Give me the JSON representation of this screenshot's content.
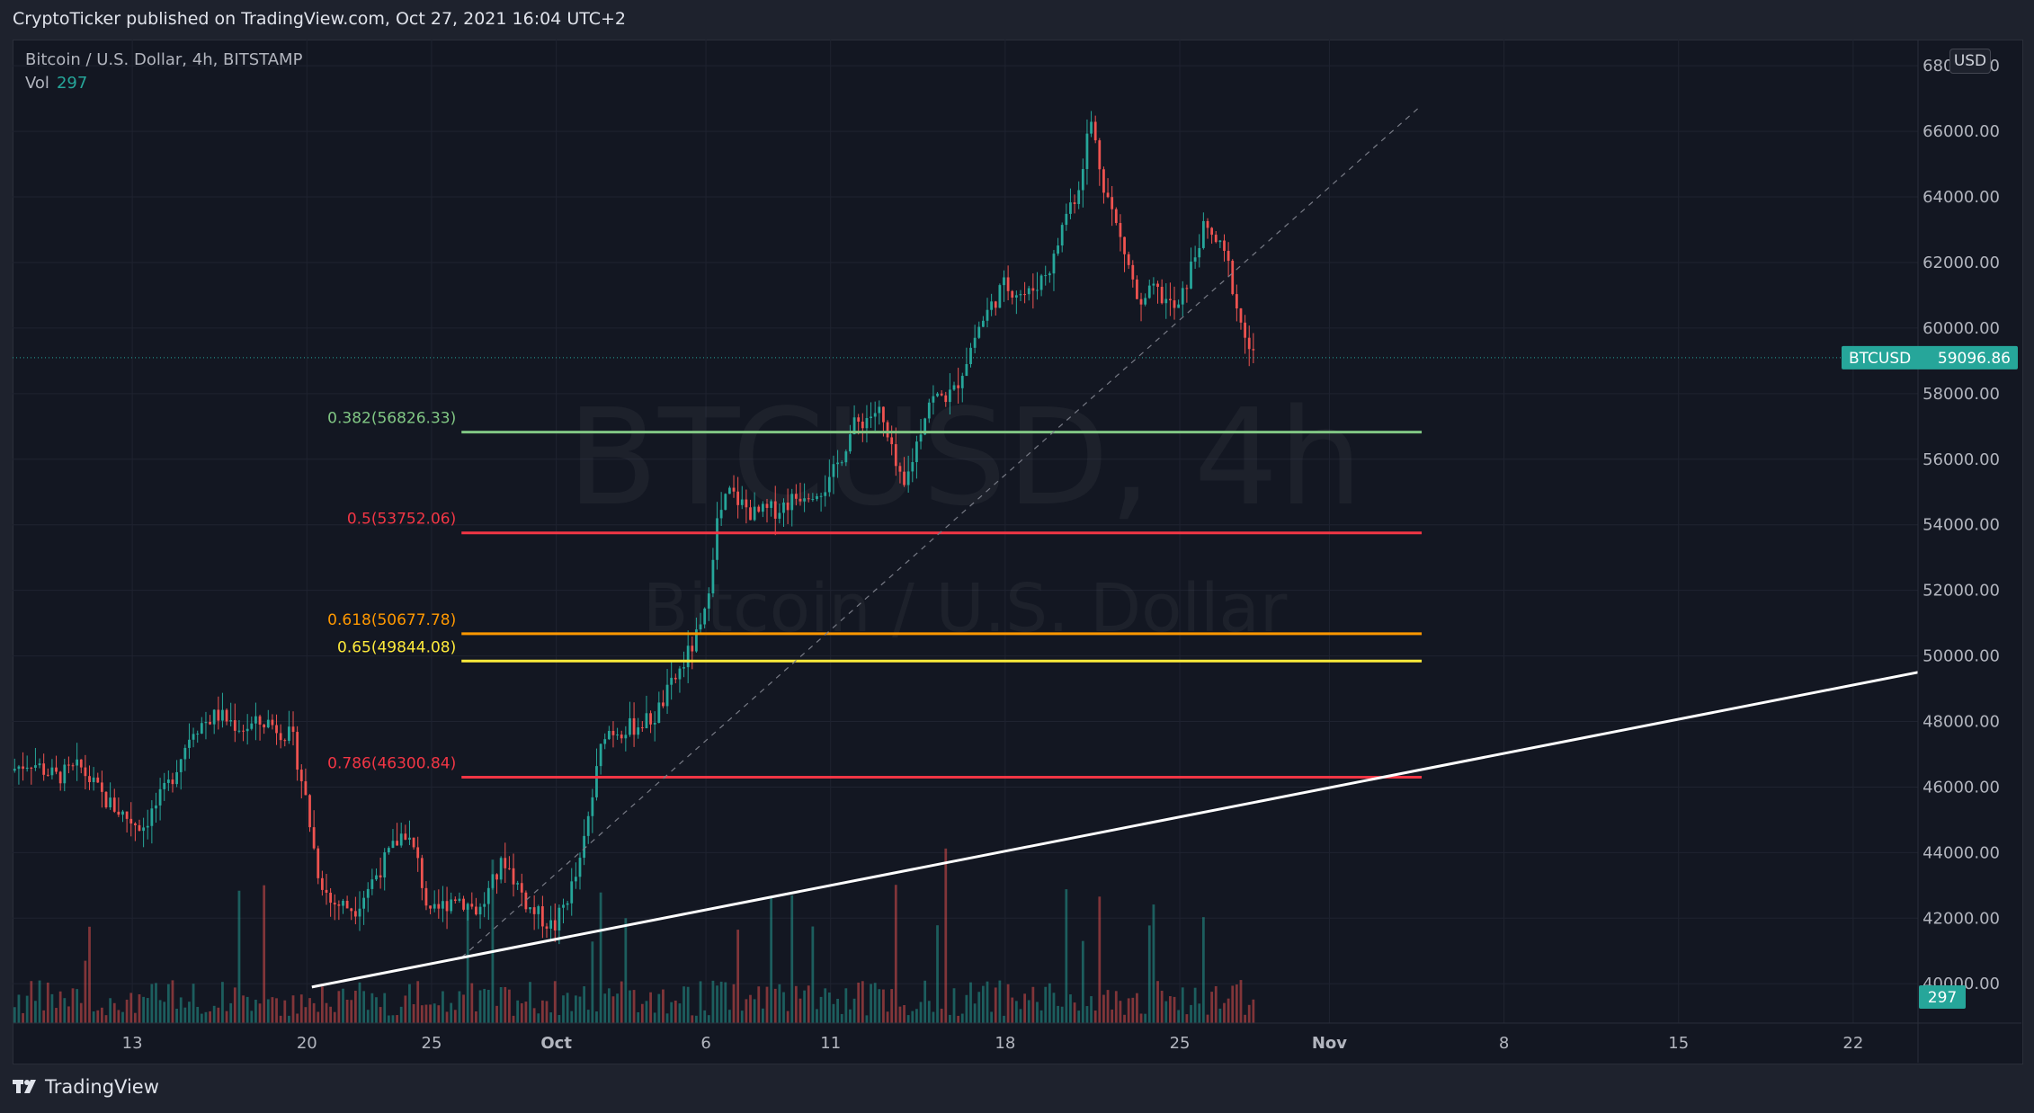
{
  "header": {
    "publisher_text": "CryptoTicker published on TradingView.com, Oct 27, 2021 16:04 UTC+2"
  },
  "legend": {
    "symbol_text": "Bitcoin / U.S. Dollar, 4h, BITSTAMP",
    "vol_label": "Vol",
    "vol_value": "297"
  },
  "currency_button": "USD",
  "watermark": {
    "ticker": "BTCUSD, 4h",
    "name": "Bitcoin / U.S. Dollar"
  },
  "footer": {
    "brand": "TradingView",
    "icon": "tradingview-logo-icon"
  },
  "colors": {
    "up": "#26a69a",
    "down": "#ef5350",
    "background": "#131722",
    "fib_0382": "#81c784",
    "fib_05": "#f23645",
    "fib_0618": "#ff9800",
    "fib_065": "#ffeb3b",
    "fib_0786": "#f23645"
  },
  "chart_data": {
    "type": "candlestick",
    "symbol": "BTCUSD",
    "timeframe": "4h",
    "exchange": "BITSTAMP",
    "y_ticks": [
      "40000.00",
      "42000.00",
      "44000.00",
      "46000.00",
      "48000.00",
      "50000.00",
      "52000.00",
      "54000.00",
      "56000.00",
      "58000.00",
      "60000.00",
      "62000.00",
      "64000.00",
      "66000.00",
      "68000.00"
    ],
    "x_ticks": [
      {
        "label": "13",
        "day": 13
      },
      {
        "label": "20",
        "day": 20
      },
      {
        "label": "25",
        "day": 25
      },
      {
        "label": "Oct",
        "day": 30
      },
      {
        "label": "6",
        "day": 36
      },
      {
        "label": "11",
        "day": 41
      },
      {
        "label": "18",
        "day": 48
      },
      {
        "label": "25",
        "day": 55
      },
      {
        "label": "Nov",
        "day": 61
      },
      {
        "label": "8",
        "day": 68
      },
      {
        "label": "15",
        "day": 75
      },
      {
        "label": "22",
        "day": 82
      }
    ],
    "price_range": [
      38800,
      68800
    ],
    "day_range": [
      8.2,
      84.6
    ],
    "last_price": {
      "symbol": "BTCUSD",
      "value": "59096.86",
      "numeric": 59096.86
    },
    "last_volume": "297",
    "fib_levels": [
      {
        "label": "0.382(56826.33)",
        "value": 56826.33,
        "colorKey": "fib_0382"
      },
      {
        "label": "0.5(53752.06)",
        "value": 53752.06,
        "colorKey": "fib_05"
      },
      {
        "label": "0.618(50677.78)",
        "value": 50677.78,
        "colorKey": "fib_0618"
      },
      {
        "label": "0.65(49844.08)",
        "value": 49844.08,
        "colorKey": "fib_065"
      },
      {
        "label": "0.786(46300.84)",
        "value": 46300.84,
        "colorKey": "fib_0786"
      }
    ],
    "fib_day_range": [
      26.2,
      64.7
    ],
    "trendline_support": {
      "from": {
        "day": 20.2,
        "price": 39900
      },
      "to": {
        "day": 84.6,
        "price": 49500
      }
    },
    "trendline_dashed": {
      "from": {
        "day": 26.2,
        "price": 40800
      },
      "to": {
        "day": 64.7,
        "price": 66800
      }
    },
    "price_path": [
      {
        "day": 8.2,
        "price": 46500
      },
      {
        "day": 9.0,
        "price": 46800
      },
      {
        "day": 10.0,
        "price": 46300
      },
      {
        "day": 11.0,
        "price": 46600
      },
      {
        "day": 12.0,
        "price": 45600
      },
      {
        "day": 13.0,
        "price": 45000
      },
      {
        "day": 13.5,
        "price": 44800
      },
      {
        "day": 14.5,
        "price": 46000
      },
      {
        "day": 15.5,
        "price": 47800
      },
      {
        "day": 16.5,
        "price": 48200
      },
      {
        "day": 17.5,
        "price": 47800
      },
      {
        "day": 18.5,
        "price": 48000
      },
      {
        "day": 19.5,
        "price": 47500
      },
      {
        "day": 20.0,
        "price": 45800
      },
      {
        "day": 20.5,
        "price": 43500
      },
      {
        "day": 21.0,
        "price": 42500
      },
      {
        "day": 22.0,
        "price": 42300
      },
      {
        "day": 23.0,
        "price": 43500
      },
      {
        "day": 24.0,
        "price": 44700
      },
      {
        "day": 24.5,
        "price": 43800
      },
      {
        "day": 25.0,
        "price": 42000
      },
      {
        "day": 26.0,
        "price": 42700
      },
      {
        "day": 27.0,
        "price": 42200
      },
      {
        "day": 28.0,
        "price": 43800
      },
      {
        "day": 29.0,
        "price": 42300
      },
      {
        "day": 30.0,
        "price": 41700
      },
      {
        "day": 31.0,
        "price": 43500
      },
      {
        "day": 32.0,
        "price": 47700
      },
      {
        "day": 33.0,
        "price": 47800
      },
      {
        "day": 34.0,
        "price": 48100
      },
      {
        "day": 35.0,
        "price": 49500
      },
      {
        "day": 36.0,
        "price": 51000
      },
      {
        "day": 36.5,
        "price": 54000
      },
      {
        "day": 37.0,
        "price": 55000
      },
      {
        "day": 38.0,
        "price": 54300
      },
      {
        "day": 39.0,
        "price": 54500
      },
      {
        "day": 40.0,
        "price": 55000
      },
      {
        "day": 41.0,
        "price": 55200
      },
      {
        "day": 42.0,
        "price": 57000
      },
      {
        "day": 43.0,
        "price": 57500
      },
      {
        "day": 44.0,
        "price": 55000
      },
      {
        "day": 45.0,
        "price": 57800
      },
      {
        "day": 46.0,
        "price": 58000
      },
      {
        "day": 47.0,
        "price": 60000
      },
      {
        "day": 48.0,
        "price": 61300
      },
      {
        "day": 49.0,
        "price": 61000
      },
      {
        "day": 50.0,
        "price": 62000
      },
      {
        "day": 50.5,
        "price": 63500
      },
      {
        "day": 51.0,
        "price": 64200
      },
      {
        "day": 51.5,
        "price": 66400
      },
      {
        "day": 52.0,
        "price": 64500
      },
      {
        "day": 52.5,
        "price": 63200
      },
      {
        "day": 53.0,
        "price": 62000
      },
      {
        "day": 53.5,
        "price": 60500
      },
      {
        "day": 54.0,
        "price": 61200
      },
      {
        "day": 55.0,
        "price": 60500
      },
      {
        "day": 56.0,
        "price": 63000
      },
      {
        "day": 56.5,
        "price": 62700
      },
      {
        "day": 57.0,
        "price": 62000
      },
      {
        "day": 57.5,
        "price": 60200
      },
      {
        "day": 58.0,
        "price": 59100
      }
    ]
  }
}
